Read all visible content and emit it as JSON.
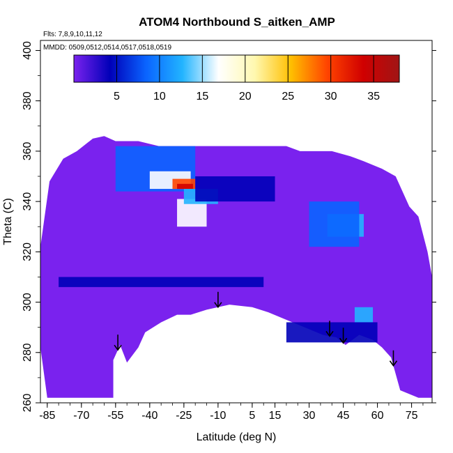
{
  "chart_data": {
    "type": "heatmap",
    "title": "ATOM4 Northbound S_aitken_AMP",
    "subtitle_flights": "Flts: 7,8,9,10,11,12",
    "subtitle_dates": "MMDD: 0509,0512,0514,0517,0518,0519",
    "xlabel": "Latitude (deg N)",
    "ylabel": "Theta (C)",
    "xlim": [
      -88,
      84
    ],
    "ylim": [
      260,
      404
    ],
    "x_ticks": [
      -85,
      -70,
      -55,
      -40,
      -25,
      -10,
      5,
      15,
      30,
      45,
      60,
      75
    ],
    "y_ticks": [
      260,
      280,
      300,
      320,
      340,
      360,
      380,
      400
    ],
    "colorbar": {
      "range": [
        0,
        38
      ],
      "ticks": [
        5,
        10,
        15,
        20,
        25,
        30,
        35
      ],
      "colors": [
        "#7a22ee",
        "#0000b8",
        "#0a64ff",
        "#22b4ff",
        "#ffffff",
        "#fff8b0",
        "#ffbf00",
        "#ff4400",
        "#d00000",
        "#a01515"
      ]
    },
    "arrows_latitude": [
      -54,
      -10,
      39,
      45,
      67
    ],
    "field": {
      "background_value": 2,
      "lower_boundary": [
        [
          -88,
          282
        ],
        [
          -85,
          262
        ],
        [
          -56,
          262
        ],
        [
          -56,
          277
        ],
        [
          -53,
          283
        ],
        [
          -50,
          276
        ],
        [
          -45,
          282
        ],
        [
          -42,
          288
        ],
        [
          -35,
          292
        ],
        [
          -28,
          295
        ],
        [
          -22,
          295
        ],
        [
          -15,
          297
        ],
        [
          -5,
          299
        ],
        [
          5,
          298
        ],
        [
          12,
          296
        ],
        [
          20,
          293
        ],
        [
          28,
          290
        ],
        [
          36,
          287
        ],
        [
          42,
          286
        ],
        [
          46,
          283
        ],
        [
          52,
          287
        ],
        [
          58,
          285
        ],
        [
          62,
          282
        ],
        [
          66,
          278
        ],
        [
          70,
          265
        ],
        [
          78,
          262
        ],
        [
          84,
          262
        ]
      ],
      "upper_boundary": [
        [
          -88,
          322
        ],
        [
          -84,
          348
        ],
        [
          -78,
          357
        ],
        [
          -72,
          360
        ],
        [
          -65,
          365
        ],
        [
          -60,
          366
        ],
        [
          -55,
          364
        ],
        [
          -45,
          364
        ],
        [
          -36,
          362
        ],
        [
          -20,
          362
        ],
        [
          0,
          362
        ],
        [
          20,
          362
        ],
        [
          26,
          360
        ],
        [
          40,
          360
        ],
        [
          48,
          358
        ],
        [
          54,
          356
        ],
        [
          62,
          353
        ],
        [
          68,
          350
        ],
        [
          74,
          338
        ],
        [
          78,
          334
        ],
        [
          82,
          320
        ],
        [
          84,
          310
        ]
      ],
      "features": [
        {
          "lat_range": [
            -55,
            -20
          ],
          "theta": [
            344,
            362
          ],
          "value": 9
        },
        {
          "lat_range": [
            -40,
            -22
          ],
          "theta": [
            345,
            352
          ],
          "value": 18
        },
        {
          "lat_range": [
            -30,
            -20
          ],
          "theta": [
            345,
            349
          ],
          "value": 28
        },
        {
          "lat_range": [
            -28,
            -21
          ],
          "theta": [
            345,
            347
          ],
          "value": 34
        },
        {
          "lat_range": [
            -28,
            -15
          ],
          "theta": [
            330,
            341
          ],
          "value": 17
        },
        {
          "lat_range": [
            -25,
            -10
          ],
          "theta": [
            339,
            345
          ],
          "value": 11
        },
        {
          "lat_range": [
            -20,
            15
          ],
          "theta": [
            340,
            350
          ],
          "value": 5
        },
        {
          "lat_range": [
            38,
            54
          ],
          "theta": [
            326,
            335
          ],
          "value": 14
        },
        {
          "lat_range": [
            30,
            52
          ],
          "theta": [
            322,
            340
          ],
          "value": 7
        },
        {
          "lat_range": [
            50,
            58
          ],
          "theta": [
            292,
            298
          ],
          "value": 12
        },
        {
          "lat_range": [
            -80,
            10
          ],
          "theta": [
            306,
            310
          ],
          "value": 5
        },
        {
          "lat_range": [
            20,
            60
          ],
          "theta": [
            284,
            292
          ],
          "value": 6
        }
      ]
    }
  }
}
